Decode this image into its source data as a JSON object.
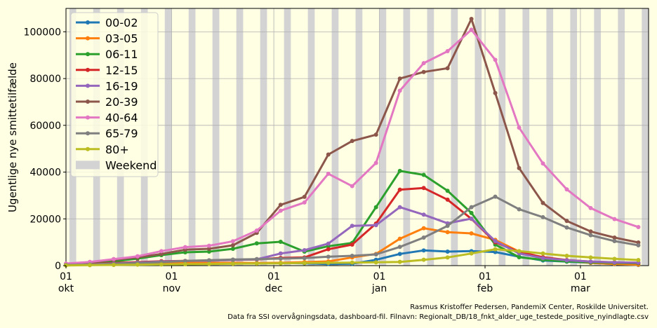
{
  "chart_data": {
    "type": "line",
    "ylabel": "Ugentlige nye smittetilfælde",
    "xlabel": "",
    "x_axis": {
      "start_date": "2021-10-01",
      "end_date": "2022-03-21",
      "ticks": [
        {
          "date": "2021-10-01",
          "day": "01",
          "month": "okt"
        },
        {
          "date": "2021-11-01",
          "day": "01",
          "month": "nov"
        },
        {
          "date": "2021-12-01",
          "day": "01",
          "month": "dec"
        },
        {
          "date": "2022-01-01",
          "day": "01",
          "month": "jan"
        },
        {
          "date": "2022-02-01",
          "day": "01",
          "month": "feb"
        },
        {
          "date": "2022-03-01",
          "day": "01",
          "month": "mar"
        }
      ]
    },
    "ylim": [
      0,
      110000
    ],
    "yticks": [
      0,
      20000,
      40000,
      60000,
      80000,
      100000
    ],
    "grid": true,
    "legend_position": "upper-left",
    "weekend_label": "Weekend",
    "weekend_color": "#d3d3d3",
    "background_color": "#ffffe4",
    "x": [
      "2021-10-01",
      "2021-10-08",
      "2021-10-15",
      "2021-10-22",
      "2021-10-29",
      "2021-11-05",
      "2021-11-12",
      "2021-11-19",
      "2021-11-26",
      "2021-12-03",
      "2021-12-10",
      "2021-12-17",
      "2021-12-24",
      "2021-12-31",
      "2022-01-07",
      "2022-01-14",
      "2022-01-21",
      "2022-01-28",
      "2022-02-04",
      "2022-02-11",
      "2022-02-18",
      "2022-02-25",
      "2022-03-04",
      "2022-03-11",
      "2022-03-18"
    ],
    "series": [
      {
        "name": "00-02",
        "color": "#1f77b4",
        "values": [
          300,
          400,
          500,
          700,
          900,
          1000,
          1100,
          1000,
          1000,
          1100,
          1000,
          700,
          800,
          2500,
          5000,
          6500,
          6000,
          6200,
          5800,
          3800,
          2200,
          1700,
          1200,
          600,
          300
        ]
      },
      {
        "name": "03-05",
        "color": "#ff7f0e",
        "values": [
          300,
          500,
          800,
          900,
          1100,
          1200,
          1200,
          1200,
          1100,
          1200,
          1500,
          1800,
          3500,
          5000,
          11500,
          16000,
          14300,
          13800,
          11000,
          6000,
          3500,
          2000,
          1200,
          700,
          400
        ]
      },
      {
        "name": "06-11",
        "color": "#2ca02c",
        "values": [
          500,
          1000,
          1800,
          3000,
          4500,
          5700,
          6000,
          7200,
          9500,
          10200,
          6000,
          8300,
          9700,
          25000,
          40500,
          38800,
          32000,
          22500,
          9000,
          3600,
          2500,
          1800,
          1400,
          1200,
          1000
        ]
      },
      {
        "name": "12-15",
        "color": "#d62728",
        "values": [
          400,
          700,
          1100,
          1500,
          1900,
          2000,
          2200,
          2400,
          2600,
          3300,
          3500,
          7000,
          9000,
          18000,
          32500,
          33200,
          28200,
          20000,
          10000,
          5800,
          3600,
          2400,
          1700,
          1400,
          1200
        ]
      },
      {
        "name": "16-19",
        "color": "#9467bd",
        "values": [
          300,
          500,
          900,
          1300,
          1700,
          2000,
          2100,
          2400,
          2700,
          5200,
          6600,
          9400,
          17000,
          17300,
          25000,
          21800,
          18100,
          20100,
          10500,
          5200,
          3200,
          2300,
          1700,
          1400,
          1300
        ]
      },
      {
        "name": "20-39",
        "color": "#8c564b",
        "values": [
          700,
          1400,
          2500,
          3500,
          5000,
          6800,
          7200,
          8700,
          14000,
          26000,
          29400,
          47500,
          53300,
          56000,
          80000,
          82800,
          84400,
          105500,
          73800,
          41700,
          26800,
          19100,
          14600,
          12000,
          9900
        ]
      },
      {
        "name": "40-64",
        "color": "#e377c2",
        "values": [
          900,
          1600,
          2800,
          4000,
          6200,
          7900,
          8500,
          10400,
          15000,
          23500,
          27000,
          39300,
          34000,
          43900,
          74800,
          86600,
          91700,
          100900,
          88000,
          59000,
          43700,
          32600,
          24600,
          19900,
          16500
        ]
      },
      {
        "name": "65-79",
        "color": "#7f7f7f",
        "values": [
          300,
          500,
          800,
          1100,
          1500,
          2000,
          2300,
          2600,
          2800,
          3000,
          3200,
          3800,
          4200,
          4800,
          8000,
          12000,
          17000,
          25000,
          29500,
          24100,
          20700,
          16300,
          13000,
          10500,
          8700
        ]
      },
      {
        "name": "80+",
        "color": "#bcbd22",
        "values": [
          100,
          200,
          300,
          400,
          500,
          600,
          700,
          800,
          900,
          1000,
          1100,
          1200,
          1300,
          1400,
          1600,
          2500,
          3500,
          5200,
          7000,
          6200,
          5200,
          4200,
          3500,
          2900,
          2400
        ]
      }
    ]
  },
  "credits": {
    "line1": "Rasmus Kristoffer Pedersen, PandemiX Center, Roskilde Universitet.",
    "line2": "Data fra SSI overvågningsdata, dashboard-fil. Filnavn: Regionalt_DB/18_fnkt_alder_uge_testede_positive_nyindlagte.csv"
  }
}
